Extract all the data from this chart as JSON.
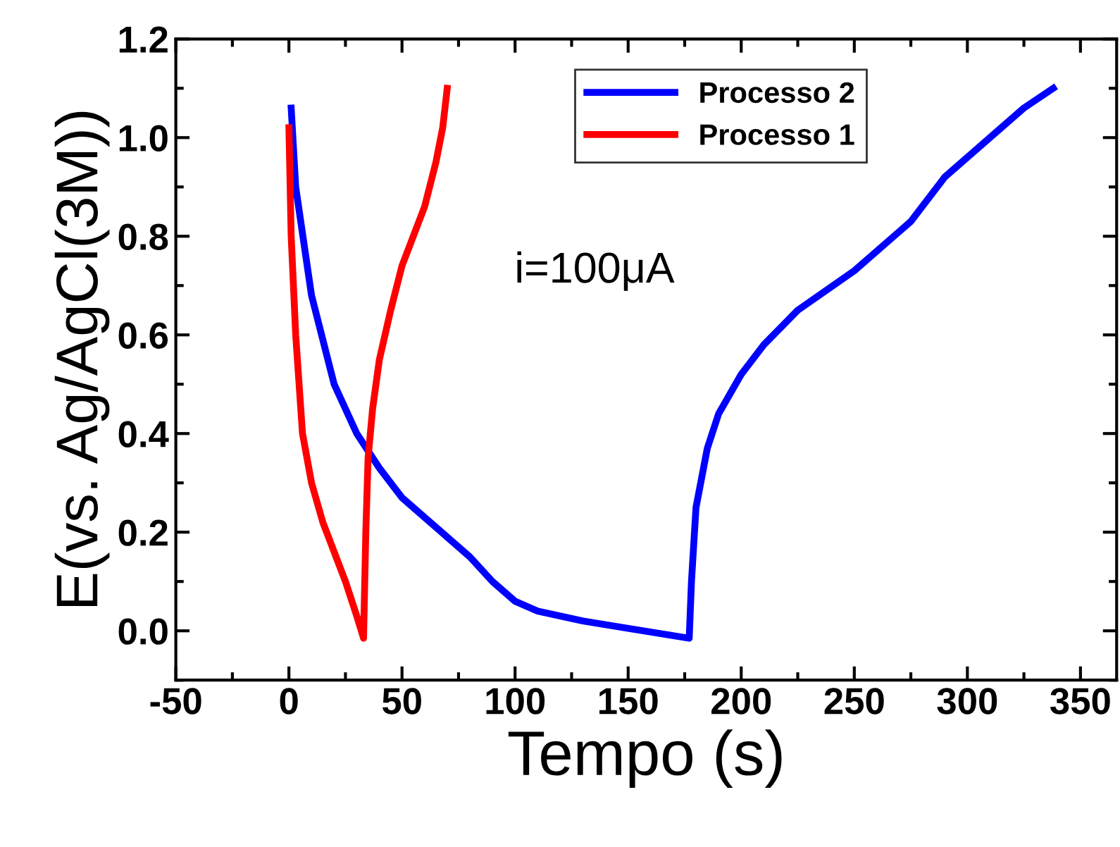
{
  "chart_data": {
    "type": "line",
    "xlabel": "Tempo (s)",
    "ylabel": "E(vs. Ag/AgCl(3M))",
    "annotations": [
      "i=100μA"
    ],
    "xlim": [
      -50,
      366
    ],
    "xticks": [
      -50,
      0,
      50,
      100,
      150,
      200,
      250,
      300,
      350
    ],
    "ylim": [
      -0.1,
      1.2
    ],
    "yticks": [
      {
        "value": 0,
        "label": "0.0"
      },
      0.2,
      0.4,
      0.6,
      0.8,
      {
        "value": 1,
        "label": "1.0"
      },
      1.2
    ],
    "grid": false,
    "legend": "top right",
    "marker": "none",
    "line_style": "solid",
    "series": [
      {
        "name": "Processo 2",
        "color": "#0000ff",
        "x": [
          1,
          3,
          10,
          20,
          30,
          40,
          50,
          60,
          70,
          80,
          90,
          100,
          110,
          130,
          150,
          177,
          178,
          180,
          185,
          190,
          200,
          210,
          225,
          250,
          275,
          290,
          310,
          325,
          338
        ],
        "values": [
          1.06,
          0.9,
          0.68,
          0.5,
          0.4,
          0.33,
          0.27,
          0.23,
          0.19,
          0.15,
          0.1,
          0.06,
          0.04,
          0.02,
          0.005,
          -0.015,
          0.1,
          0.25,
          0.37,
          0.44,
          0.52,
          0.58,
          0.65,
          0.73,
          0.83,
          0.92,
          1.0,
          1.06,
          1.1
        ]
      },
      {
        "name": "Processo 1",
        "color": "#ff0000",
        "x": [
          0,
          1,
          3,
          6,
          10,
          15,
          20,
          25,
          30,
          33,
          34,
          35,
          37,
          40,
          45,
          50,
          55,
          60,
          65,
          68,
          70
        ],
        "values": [
          1.02,
          0.8,
          0.6,
          0.4,
          0.3,
          0.22,
          0.16,
          0.1,
          0.03,
          -0.015,
          0.2,
          0.35,
          0.45,
          0.55,
          0.65,
          0.74,
          0.8,
          0.86,
          0.95,
          1.02,
          1.1
        ]
      }
    ]
  }
}
